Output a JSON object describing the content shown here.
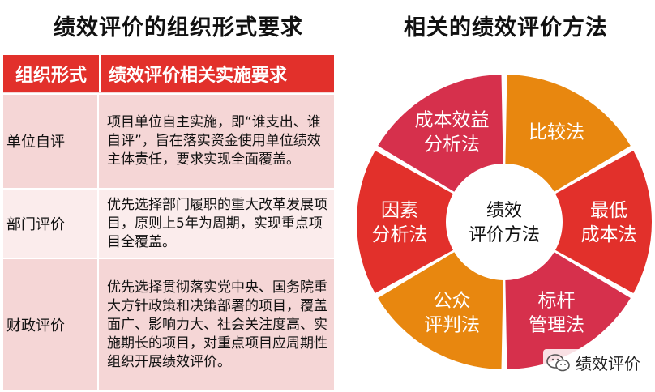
{
  "left_title": "绩效评价的组织形式要求",
  "right_title": "相关的绩效评价方法",
  "table": {
    "headers": [
      "组织形式",
      "绩效评价相关实施要求"
    ],
    "rows": [
      {
        "form": "单位自评",
        "requirement": "项目单位自主实施，即“谁支出、谁自评”，旨在落实资金使用单位绩效主体责任，要求实现全面覆盖。"
      },
      {
        "form": "部门评价",
        "requirement": "优先选择部门履职的重大改革发展项目，原则上5年为周期，实现重点项目全覆盖。"
      },
      {
        "form": "财政评价",
        "requirement": "优先选择贯彻落实党中央、国务院重大方针政策和决策部署的项目，覆盖面广、影响力大、社会关注度高、实施期长的项目，对重点项目应周期性组织开展绩效评价。"
      }
    ]
  },
  "diagram": {
    "center_lines": [
      "绩效",
      "评价方法"
    ],
    "segments": [
      {
        "lines": [
          "比较法"
        ],
        "color": "#e8870f"
      },
      {
        "lines": [
          "最低",
          "成本法"
        ],
        "color": "#e2302b"
      },
      {
        "lines": [
          "标杆",
          "管理法"
        ],
        "color": "#d6304c"
      },
      {
        "lines": [
          "公众",
          "评判法"
        ],
        "color": "#e8870f"
      },
      {
        "lines": [
          "因素",
          "分析法"
        ],
        "color": "#e2302b"
      },
      {
        "lines": [
          "成本效益",
          "分析法"
        ],
        "color": "#d6304c"
      }
    ]
  },
  "watermark": {
    "text": "绩效评价"
  },
  "colors": {
    "header_red": "#e2302b",
    "row_pink": "#f5d6d6",
    "row_light": "#fbecec"
  }
}
